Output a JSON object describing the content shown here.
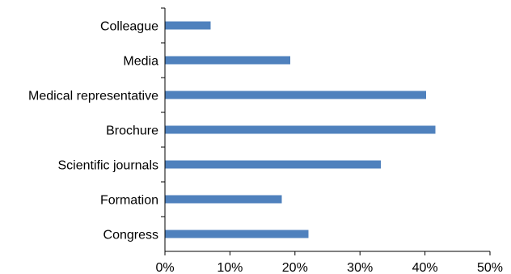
{
  "chart_data": {
    "type": "bar",
    "orientation": "horizontal",
    "categories": [
      "Colleague",
      "Media",
      "Medical representative",
      "Brochure",
      "Scientific journals",
      "Formation",
      "Congress"
    ],
    "values": [
      7,
      19.3,
      40.2,
      41.6,
      33.2,
      18,
      22.1
    ],
    "x_ticks": [
      "0%",
      "10%",
      "20%",
      "30%",
      "40%",
      "50%"
    ],
    "xlim": [
      0,
      50
    ],
    "title": "",
    "xlabel": "",
    "ylabel": "",
    "grid": false,
    "bar_color": "#4F81BD"
  }
}
